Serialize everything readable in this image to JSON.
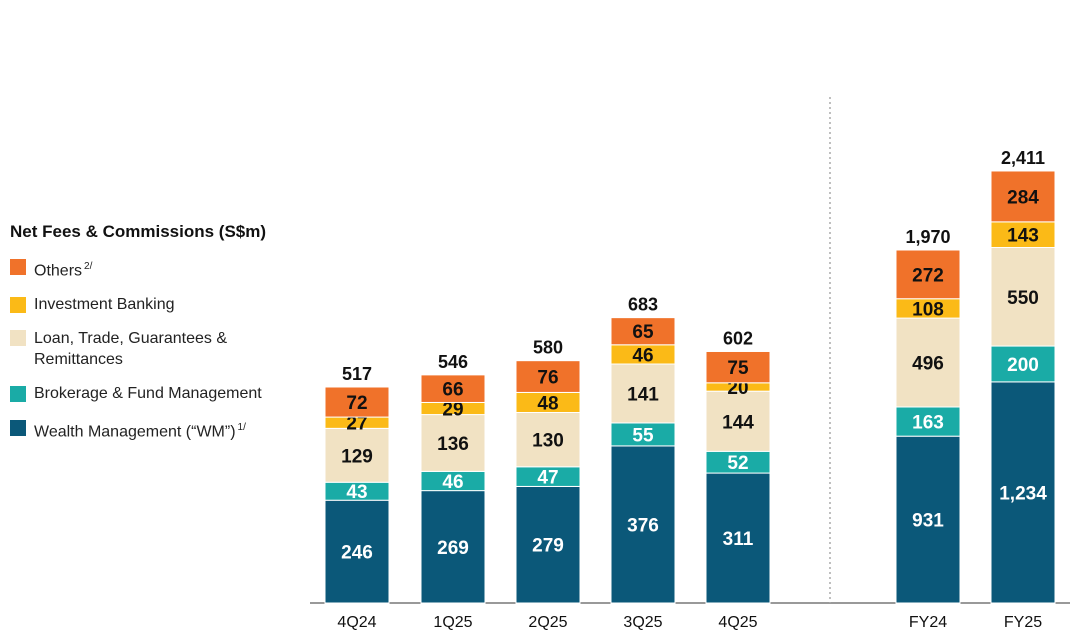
{
  "chart_data": {
    "type": "bar",
    "stacked": true,
    "title": "Net Fees & Commissions (S$m)",
    "categories": [
      "4Q24",
      "1Q25",
      "2Q25",
      "3Q25",
      "4Q25",
      "FY24",
      "FY25"
    ],
    "series": [
      {
        "name": "Wealth Management (“WM”)",
        "footnote": "1/",
        "color": "#0b5879",
        "label_color": "#ffffff",
        "values": [
          246,
          269,
          279,
          376,
          311,
          931,
          1234
        ],
        "labels": [
          "246",
          "269",
          "279",
          "376",
          "311",
          "931",
          "1,234"
        ]
      },
      {
        "name": "Brokerage & Fund Management",
        "footnote": "",
        "color": "#1aaba6",
        "label_color": "#ffffff",
        "values": [
          43,
          46,
          47,
          55,
          52,
          163,
          200
        ],
        "labels": [
          "43",
          "46",
          "47",
          "55",
          "52",
          "163",
          "200"
        ]
      },
      {
        "name": "Loan, Trade, Guarantees & Remittances",
        "footnote": "",
        "color": "#f1e2c3",
        "label_color": "#111111",
        "values": [
          129,
          136,
          130,
          141,
          144,
          496,
          550
        ],
        "labels": [
          "129",
          "136",
          "130",
          "141",
          "144",
          "496",
          "550"
        ]
      },
      {
        "name": "Investment Banking",
        "footnote": "",
        "color": "#fbba17",
        "label_color": "#111111",
        "values": [
          27,
          29,
          48,
          46,
          20,
          108,
          143
        ],
        "labels": [
          "27",
          "29",
          "48",
          "46",
          "20",
          "108",
          "143"
        ]
      },
      {
        "name": "Others",
        "footnote": "2/",
        "color": "#f0722a",
        "label_color": "#111111",
        "values": [
          72,
          66,
          76,
          65,
          75,
          272,
          284
        ],
        "labels": [
          "72",
          "66",
          "76",
          "65",
          "75",
          "272",
          "284"
        ]
      }
    ],
    "totals": [
      517,
      546,
      580,
      683,
      602,
      1970,
      2411
    ],
    "total_labels": [
      "517",
      "546",
      "580",
      "683",
      "602",
      "1,970",
      "2,411"
    ],
    "legend_order": [
      "Others",
      "Investment Banking",
      "Loan, Trade, Guarantees & Remittances",
      "Brokerage & Fund Management",
      "Wealth Management (“WM”)"
    ],
    "legend_position": "left",
    "ylim": [
      0,
      2411
    ]
  }
}
